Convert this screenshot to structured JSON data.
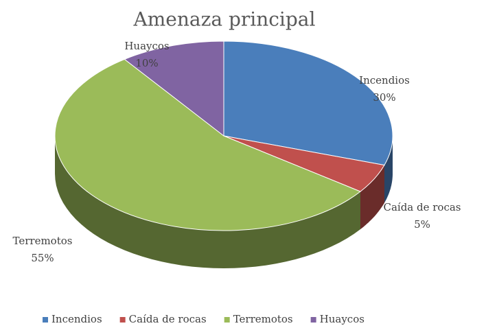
{
  "chart_data": {
    "type": "pie",
    "title": "Amenaza principal",
    "categories": [
      "Incendios",
      "Caída de rocas",
      "Terremotos",
      "Huaycos"
    ],
    "values": [
      30,
      5,
      55,
      10
    ],
    "value_labels": [
      "30%",
      "5%",
      "55%",
      "10%"
    ],
    "colors": [
      "#4a7ebb",
      "#c0504d",
      "#9bbb59",
      "#8064a2"
    ],
    "legend": "bottom"
  }
}
